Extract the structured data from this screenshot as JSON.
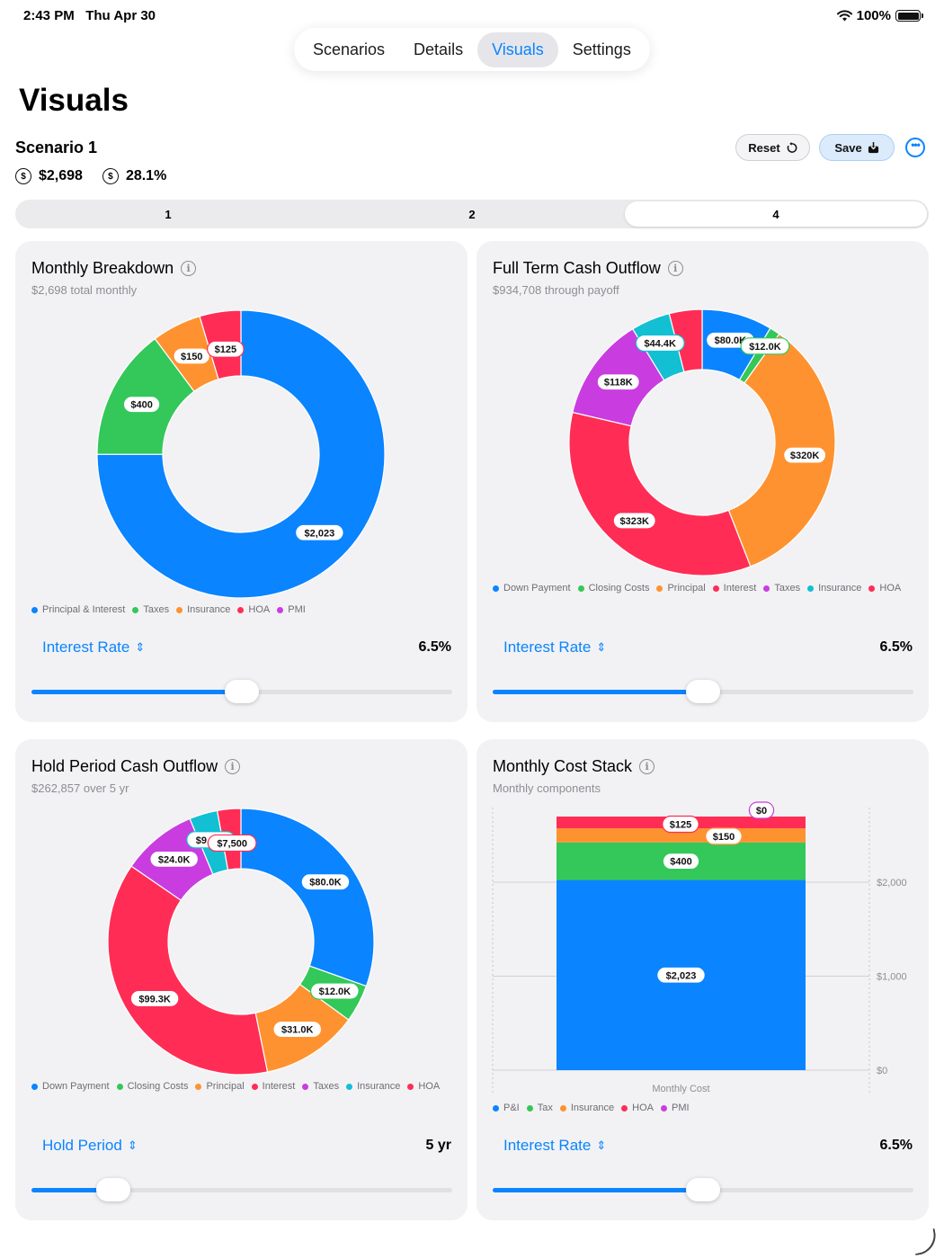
{
  "status": {
    "time": "2:43 PM",
    "date": "Thu Apr 30",
    "battery": "100%",
    "battery_level": 1.0
  },
  "tabs": [
    {
      "label": "Scenarios",
      "active": false
    },
    {
      "label": "Details",
      "active": false
    },
    {
      "label": "Visuals",
      "active": true
    },
    {
      "label": "Settings",
      "active": false
    }
  ],
  "page_title": "Visuals",
  "scenario": {
    "name": "Scenario 1",
    "monthly": "$2,698",
    "rate": "28.1%"
  },
  "actions": {
    "reset": "Reset",
    "save": "Save"
  },
  "segments": [
    {
      "label": "1",
      "active": false
    },
    {
      "label": "2",
      "active": false
    },
    {
      "label": "4",
      "active": true
    }
  ],
  "colors": {
    "blue": "#0a84ff",
    "green": "#34c759",
    "orange": "#ff9230",
    "red": "#ff2d55",
    "purple": "#c93de0",
    "teal": "#12bfd3",
    "slider_fill": "#0a84ff"
  },
  "cards": {
    "monthly_breakdown": {
      "title": "Monthly Breakdown",
      "subtitle": "$2,698 total monthly",
      "picker_label": "Interest Rate",
      "picker_value": "6.5%",
      "slider_fraction": 0.5
    },
    "full_term": {
      "title": "Full Term Cash Outflow",
      "subtitle": "$934,708 through payoff",
      "picker_label": "Interest Rate",
      "picker_value": "6.5%",
      "slider_fraction": 0.5
    },
    "hold_period": {
      "title": "Hold Period Cash Outflow",
      "subtitle": "$262,857 over 5 yr",
      "picker_label": "Hold Period",
      "picker_value": "5 yr",
      "slider_fraction": 0.195
    },
    "cost_stack": {
      "title": "Monthly Cost Stack",
      "subtitle": "Monthly components",
      "picker_label": "Interest Rate",
      "picker_value": "6.5%",
      "slider_fraction": 0.5
    }
  },
  "chart_data": [
    {
      "type": "pie",
      "title": "Monthly Breakdown",
      "slices": [
        {
          "name": "Principal & Interest",
          "value": 2023,
          "label": "$2,023",
          "color": "#0a84ff"
        },
        {
          "name": "Taxes",
          "value": 400,
          "label": "$400",
          "color": "#34c759"
        },
        {
          "name": "Insurance",
          "value": 150,
          "label": "$150",
          "color": "#ff9230"
        },
        {
          "name": "HOA",
          "value": 125,
          "label": "$125",
          "color": "#ff2d55"
        },
        {
          "name": "PMI",
          "value": 0,
          "label": "",
          "color": "#c93de0"
        }
      ]
    },
    {
      "type": "pie",
      "title": "Full Term Cash Outflow",
      "slices": [
        {
          "name": "Down Payment",
          "value": 80000,
          "label": "$80.0K",
          "color": "#0a84ff"
        },
        {
          "name": "Closing Costs",
          "value": 12000,
          "label": "$12.0K",
          "color": "#34c759"
        },
        {
          "name": "Principal",
          "value": 320000,
          "label": "$320K",
          "color": "#ff9230"
        },
        {
          "name": "Interest",
          "value": 323000,
          "label": "$323K",
          "color": "#ff2d55"
        },
        {
          "name": "Taxes",
          "value": 118000,
          "label": "$118K",
          "color": "#c93de0"
        },
        {
          "name": "Insurance",
          "value": 44400,
          "label": "$44.4K",
          "color": "#12bfd3"
        },
        {
          "name": "HOA",
          "value": 37300,
          "label": "",
          "color": "#ff2d55"
        }
      ]
    },
    {
      "type": "pie",
      "title": "Hold Period Cash Outflow",
      "slices": [
        {
          "name": "Down Payment",
          "value": 80000,
          "label": "$80.0K",
          "color": "#0a84ff"
        },
        {
          "name": "Closing Costs",
          "value": 12000,
          "label": "$12.0K",
          "color": "#34c759"
        },
        {
          "name": "Principal",
          "value": 31000,
          "label": "$31.0K",
          "color": "#ff9230"
        },
        {
          "name": "Interest",
          "value": 99300,
          "label": "$99.3K",
          "color": "#ff2d55"
        },
        {
          "name": "Taxes",
          "value": 24000,
          "label": "$24.0K",
          "color": "#c93de0"
        },
        {
          "name": "Insurance",
          "value": 9000,
          "label": "$9,000",
          "color": "#12bfd3"
        },
        {
          "name": "HOA",
          "value": 7500,
          "label": "$7,500",
          "color": "#ff2d55"
        }
      ]
    },
    {
      "type": "bar",
      "title": "Monthly Cost Stack",
      "categories": [
        "Monthly Cost"
      ],
      "xlabel": "Monthly Cost",
      "ylim": [
        0,
        2698
      ],
      "yticks": [
        {
          "value": 0,
          "label": "$0"
        },
        {
          "value": 1000,
          "label": "$1,000"
        },
        {
          "value": 2000,
          "label": "$2,000"
        }
      ],
      "series": [
        {
          "name": "P&I",
          "values": [
            2023
          ],
          "label": "$2,023",
          "color": "#0a84ff"
        },
        {
          "name": "Tax",
          "values": [
            400
          ],
          "label": "$400",
          "color": "#34c759"
        },
        {
          "name": "Insurance",
          "values": [
            150
          ],
          "label": "$150",
          "color": "#ff9230"
        },
        {
          "name": "HOA",
          "values": [
            125
          ],
          "label": "$125",
          "color": "#ff2d55"
        },
        {
          "name": "PMI",
          "values": [
            0
          ],
          "label": "$0",
          "color": "#c93de0"
        }
      ]
    }
  ],
  "legends": {
    "monthly_breakdown": [
      {
        "name": "Principal & Interest",
        "color": "#0a84ff"
      },
      {
        "name": "Taxes",
        "color": "#34c759"
      },
      {
        "name": "Insurance",
        "color": "#ff9230"
      },
      {
        "name": "HOA",
        "color": "#ff2d55"
      },
      {
        "name": "PMI",
        "color": "#c93de0"
      }
    ],
    "full_term": [
      {
        "name": "Down Payment",
        "color": "#0a84ff"
      },
      {
        "name": "Closing Costs",
        "color": "#34c759"
      },
      {
        "name": "Principal",
        "color": "#ff9230"
      },
      {
        "name": "Interest",
        "color": "#ff2d55"
      },
      {
        "name": "Taxes",
        "color": "#c93de0"
      },
      {
        "name": "Insurance",
        "color": "#12bfd3"
      },
      {
        "name": "HOA",
        "color": "#ff2d55"
      }
    ],
    "hold_period": [
      {
        "name": "Down Payment",
        "color": "#0a84ff"
      },
      {
        "name": "Closing Costs",
        "color": "#34c759"
      },
      {
        "name": "Principal",
        "color": "#ff9230"
      },
      {
        "name": "Interest",
        "color": "#ff2d55"
      },
      {
        "name": "Taxes",
        "color": "#c93de0"
      },
      {
        "name": "Insurance",
        "color": "#12bfd3"
      },
      {
        "name": "HOA",
        "color": "#ff2d55"
      }
    ],
    "cost_stack": [
      {
        "name": "P&I",
        "color": "#0a84ff"
      },
      {
        "name": "Tax",
        "color": "#34c759"
      },
      {
        "name": "Insurance",
        "color": "#ff9230"
      },
      {
        "name": "HOA",
        "color": "#ff2d55"
      },
      {
        "name": "PMI",
        "color": "#c93de0"
      }
    ]
  }
}
